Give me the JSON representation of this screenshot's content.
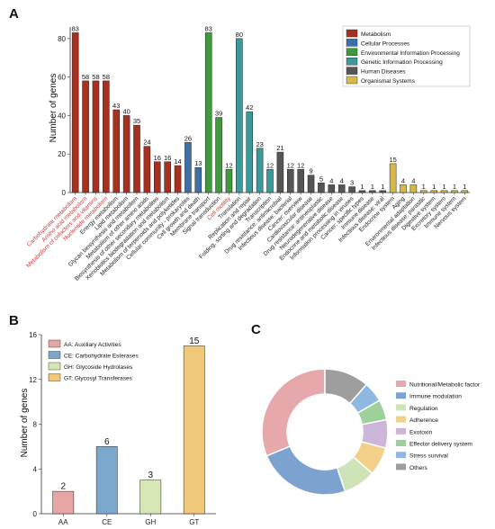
{
  "panels": {
    "a": "A",
    "b": "B",
    "c": "C"
  },
  "chart_data": [
    {
      "type": "bar",
      "ylabel": "Number of genes",
      "ylim": [
        0,
        86
      ],
      "yticks": [
        0,
        20,
        40,
        60,
        80
      ],
      "legend_placement": "top-right",
      "groups": [
        {
          "name": "Metabolism",
          "color": "#a8301e"
        },
        {
          "name": "Cellular Processes",
          "color": "#3d6fa8"
        },
        {
          "name": "Environmental Information Processing",
          "color": "#3f9a3c"
        },
        {
          "name": "Genetic Information Processing",
          "color": "#3a9a9a"
        },
        {
          "name": "Human Diseases",
          "color": "#555555"
        },
        {
          "name": "Organismal Systems",
          "color": "#d4b84a"
        }
      ],
      "bars": [
        {
          "label": "Carbohydrate metabolism",
          "value": 83,
          "group": 0,
          "highlight": true
        },
        {
          "label": "Amino acid metabolism",
          "value": 58,
          "group": 0,
          "highlight": true
        },
        {
          "label": "Metabolism of cofactors and vitamins",
          "value": 58,
          "group": 0,
          "highlight": true
        },
        {
          "label": "Nucleotide metabolism",
          "value": 58,
          "group": 0,
          "highlight": true
        },
        {
          "label": "Energy metabolism",
          "value": 43,
          "group": 0,
          "highlight": false
        },
        {
          "label": "Lipid metabolism",
          "value": 40,
          "group": 0,
          "highlight": false
        },
        {
          "label": "Glycan biosynthesis and metabolism",
          "value": 35,
          "group": 0,
          "highlight": false
        },
        {
          "label": "Metabolism of other amino acids",
          "value": 24,
          "group": 0,
          "highlight": false
        },
        {
          "label": "Biosynthesis of other secondary metabolites",
          "value": 16,
          "group": 0,
          "highlight": false
        },
        {
          "label": "Xenobiotics biodegradation and metabolism",
          "value": 16,
          "group": 0,
          "highlight": false
        },
        {
          "label": "Metabolism of terpenoids and polyketides",
          "value": 14,
          "group": 0,
          "highlight": false
        },
        {
          "label": "Cellular community - prokaryotes",
          "value": 26,
          "group": 1,
          "highlight": false
        },
        {
          "label": "Cell growth and death",
          "value": 13,
          "group": 1,
          "highlight": false
        },
        {
          "label": "Membrane transport",
          "value": 83,
          "group": 2,
          "highlight": false
        },
        {
          "label": "Signal transduction",
          "value": 39,
          "group": 2,
          "highlight": false
        },
        {
          "label": "Cell motility",
          "value": 12,
          "group": 2,
          "highlight": true
        },
        {
          "label": "Translation",
          "value": 80,
          "group": 3,
          "highlight": false
        },
        {
          "label": "Replication and repair",
          "value": 42,
          "group": 3,
          "highlight": false
        },
        {
          "label": "Folding, sorting and degradation",
          "value": 23,
          "group": 3,
          "highlight": false
        },
        {
          "label": "Transcription",
          "value": 12,
          "group": 3,
          "highlight": false
        },
        {
          "label": "Drug resistance: antimicrobial",
          "value": 21,
          "group": 4,
          "highlight": false
        },
        {
          "label": "Infectious disease: bacterial",
          "value": 12,
          "group": 4,
          "highlight": false
        },
        {
          "label": "Cancer: overview",
          "value": 12,
          "group": 4,
          "highlight": false
        },
        {
          "label": "Cardiovascular disease",
          "value": 9,
          "group": 4,
          "highlight": false
        },
        {
          "label": "Drug resistance: antineoplastic",
          "value": 5,
          "group": 4,
          "highlight": false
        },
        {
          "label": "Neurodegenerative disease",
          "value": 4,
          "group": 4,
          "highlight": false
        },
        {
          "label": "Endocrine and metabolic disease",
          "value": 4,
          "group": 4,
          "highlight": false
        },
        {
          "label": "Information processing in viruses",
          "value": 3,
          "group": 4,
          "highlight": false
        },
        {
          "label": "Cancer: specific types",
          "value": 1,
          "group": 4,
          "highlight": false
        },
        {
          "label": "Immune disease",
          "value": 1,
          "group": 4,
          "highlight": false
        },
        {
          "label": "Infectious disease: viral",
          "value": 1,
          "group": 4,
          "highlight": false
        },
        {
          "label": "Endocrine system",
          "value": 15,
          "group": 5,
          "highlight": false
        },
        {
          "label": "Aging",
          "value": 4,
          "group": 5,
          "highlight": false
        },
        {
          "label": "Environmental adaptation",
          "value": 4,
          "group": 5,
          "highlight": false
        },
        {
          "label": "Infectious disease: parasitic",
          "value": 1,
          "group": 5,
          "highlight": false
        },
        {
          "label": "Digestive system",
          "value": 1,
          "group": 5,
          "highlight": false
        },
        {
          "label": "Excretory system",
          "value": 1,
          "group": 5,
          "highlight": false
        },
        {
          "label": "Immune system",
          "value": 1,
          "group": 5,
          "highlight": false
        },
        {
          "label": "Nervous system",
          "value": 1,
          "group": 5,
          "highlight": false
        }
      ]
    },
    {
      "type": "bar",
      "ylabel": "Number of genes",
      "ylim": [
        0,
        16
      ],
      "yticks": [
        0,
        4,
        8,
        12,
        16
      ],
      "legend_placement": "top-left",
      "categories": [
        "AA",
        "CE",
        "GH",
        "GT"
      ],
      "values": [
        2,
        6,
        3,
        15
      ],
      "colors": [
        "#e8a5a5",
        "#7ba8cc",
        "#d6e6b4",
        "#f0c87a"
      ],
      "legend": [
        "AA: Auxiliary Activities",
        "CE: Carbohydrate Esterases",
        "GH: Glycoside Hydrolases",
        "GT: Glycosyl Transferases"
      ]
    },
    {
      "type": "pie",
      "donut": true,
      "legend_placement": "right",
      "slices": [
        {
          "label": "Nutritional/Metabolic factor",
          "value": 30,
          "color": "#e6a8ab"
        },
        {
          "label": "Immune modulation",
          "value": 23,
          "color": "#7ca3cf"
        },
        {
          "label": "Regulation",
          "value": 8,
          "color": "#cfe3b8"
        },
        {
          "label": "Adherence",
          "value": 7,
          "color": "#f3cf88"
        },
        {
          "label": "Exotoxin",
          "value": 7,
          "color": "#cbb5da"
        },
        {
          "label": "Effector delivery system",
          "value": 5,
          "color": "#9ed19a"
        },
        {
          "label": "Stress survival",
          "value": 5,
          "color": "#8fb8e0"
        },
        {
          "label": "Others",
          "value": 11,
          "color": "#9e9e9e"
        }
      ]
    }
  ]
}
